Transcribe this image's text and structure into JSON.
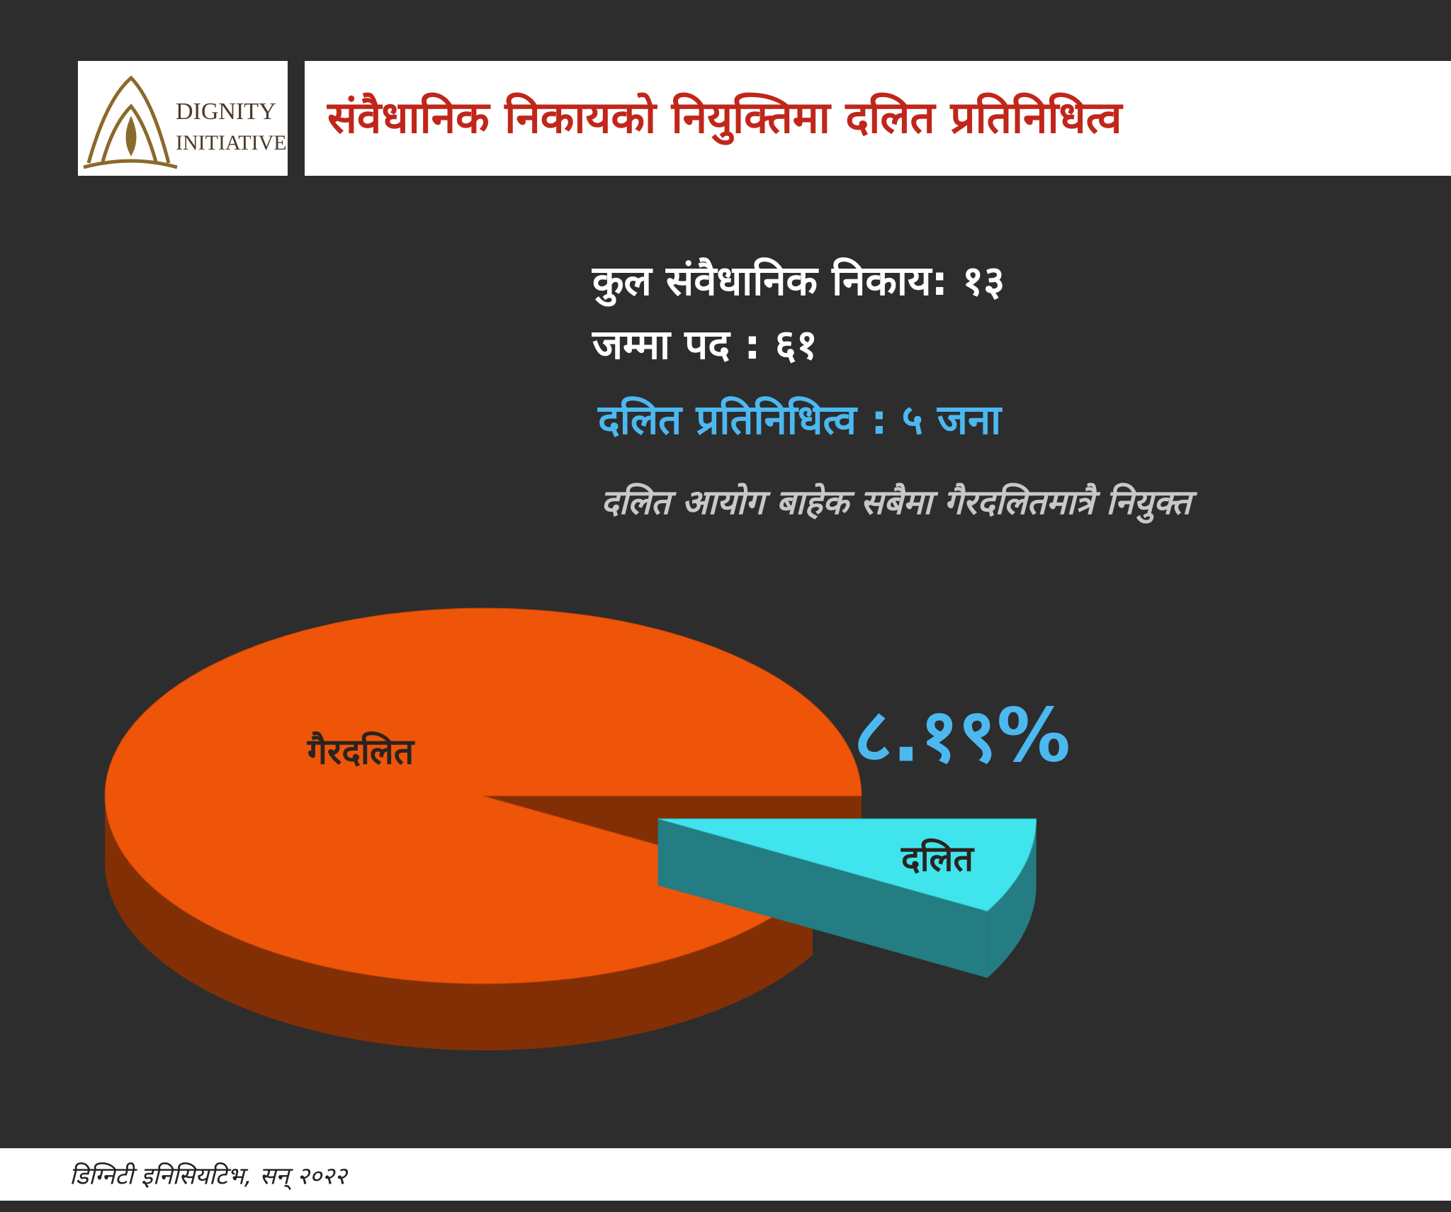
{
  "header": {
    "logo": [
      "DIGNITY",
      "INITIATIVE"
    ],
    "title": "संवैधानिक निकायको नियुक्तिमा दलित प्रतिनिधित्व"
  },
  "info": {
    "lines": [
      "कुल संवैधानिक निकाय: १३",
      "जम्मा पद : ६१"
    ],
    "highlight": "दलित प्रतिनिधित्व : ५ जना",
    "note": "दलित आयोग बाहेक सबैमा गैरदलितमात्रै नियुक्त"
  },
  "chart_data": {
    "type": "pie",
    "categories": [
      "गैरदलित",
      "दलित"
    ],
    "values": [
      91.81,
      8.19
    ],
    "value_labels": [
      null,
      "८.१९%"
    ],
    "colors": [
      "#ee5509",
      "#3fe4ec"
    ],
    "exploded": [
      false,
      true
    ],
    "three_d": true
  },
  "footer": "डिग्निटी इनिसियटिभ, सन् २०२२"
}
